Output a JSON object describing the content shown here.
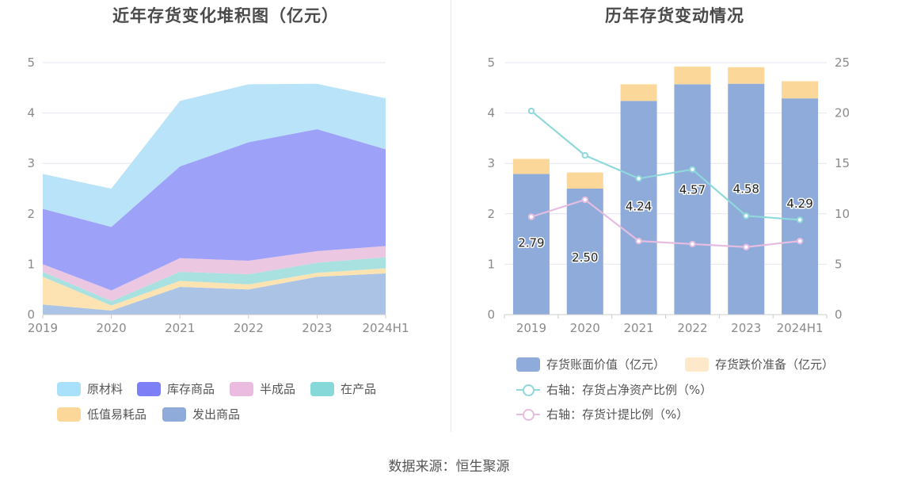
{
  "source": "数据来源：恒生聚源",
  "colors": {
    "grid": "#e4e6f2",
    "axis": "#cccccc",
    "raw": "#b9e3f9",
    "finished": "#9ea1f8",
    "semi": "#ecc7e1",
    "wip": "#a9e1e0",
    "consumables": "#fde3b2",
    "shipped": "#abc4e5",
    "book_value": "#8eabda",
    "impairment": "#fcd79a",
    "impairment_legend": "#fde9c9",
    "net_asset_ratio": "#8fd9da",
    "provision_ratio": "#e6bde0"
  },
  "chart_data": [
    {
      "type": "area",
      "title": "近年存货变化堆积图（亿元）",
      "x": [
        "2019",
        "2020",
        "2021",
        "2022",
        "2023",
        "2024H1"
      ],
      "ylim": [
        0,
        5
      ],
      "yticks": [
        "0",
        "1",
        "2",
        "3",
        "4",
        "5"
      ],
      "grid": true,
      "stacked": true,
      "legend_position": "bottom",
      "series": [
        {
          "name": "发出商品",
          "values": [
            0.2,
            0.08,
            0.55,
            0.5,
            0.75,
            0.82
          ],
          "color_key": "shipped",
          "legend_color": "#8eabda"
        },
        {
          "name": "低值易耗品",
          "values": [
            0.55,
            0.1,
            0.12,
            0.1,
            0.08,
            0.1
          ],
          "color_key": "consumables",
          "legend_color": "#fcd79a"
        },
        {
          "name": "在产品",
          "values": [
            0.1,
            0.09,
            0.18,
            0.2,
            0.2,
            0.22
          ],
          "color_key": "wip",
          "legend_color": "#86d8d9"
        },
        {
          "name": "半成品",
          "values": [
            0.15,
            0.21,
            0.27,
            0.27,
            0.23,
            0.22
          ],
          "color_key": "semi",
          "legend_color": "#ebbcdf"
        },
        {
          "name": "库存商品",
          "values": [
            1.1,
            1.26,
            1.82,
            2.35,
            2.42,
            1.92
          ],
          "color_key": "finished",
          "legend_color": "#7c7ff5"
        },
        {
          "name": "原材料",
          "values": [
            0.69,
            0.76,
            1.3,
            1.15,
            0.9,
            1.01
          ],
          "color_key": "raw",
          "legend_color": "#a9e1fa"
        }
      ]
    },
    {
      "type": "bar",
      "title": "历年存货变动情况",
      "categories": [
        "2019",
        "2020",
        "2021",
        "2022",
        "2023",
        "2024H1"
      ],
      "ylim": [
        0,
        5
      ],
      "yticks": [
        "0",
        "1",
        "2",
        "3",
        "4",
        "5"
      ],
      "y2lim": [
        0,
        25
      ],
      "y2ticks": [
        "0",
        "5",
        "10",
        "15",
        "20",
        "25"
      ],
      "grid": true,
      "stacked": true,
      "legend_position": "bottom",
      "series": [
        {
          "name": "存货账面价值（亿元）",
          "values": [
            2.79,
            2.5,
            4.24,
            4.57,
            4.58,
            4.29
          ],
          "labels": [
            "2.79",
            "2.50",
            "4.24",
            "4.57",
            "4.58",
            "4.29"
          ],
          "color_key": "book_value",
          "kind": "bar"
        },
        {
          "name": "存货跌价准备（亿元）",
          "values": [
            0.3,
            0.32,
            0.33,
            0.35,
            0.33,
            0.34
          ],
          "color_key": "impairment",
          "kind": "bar"
        },
        {
          "name": "右轴：存货占净资产比例（%）",
          "values": [
            20.2,
            15.8,
            13.5,
            14.4,
            9.8,
            9.4
          ],
          "color_key": "net_asset_ratio",
          "kind": "line",
          "axis": "right"
        },
        {
          "name": "右轴：存货计提比例（%）",
          "values": [
            9.7,
            11.4,
            7.3,
            7.0,
            6.7,
            7.3
          ],
          "color_key": "provision_ratio",
          "kind": "line",
          "axis": "right"
        }
      ]
    }
  ]
}
